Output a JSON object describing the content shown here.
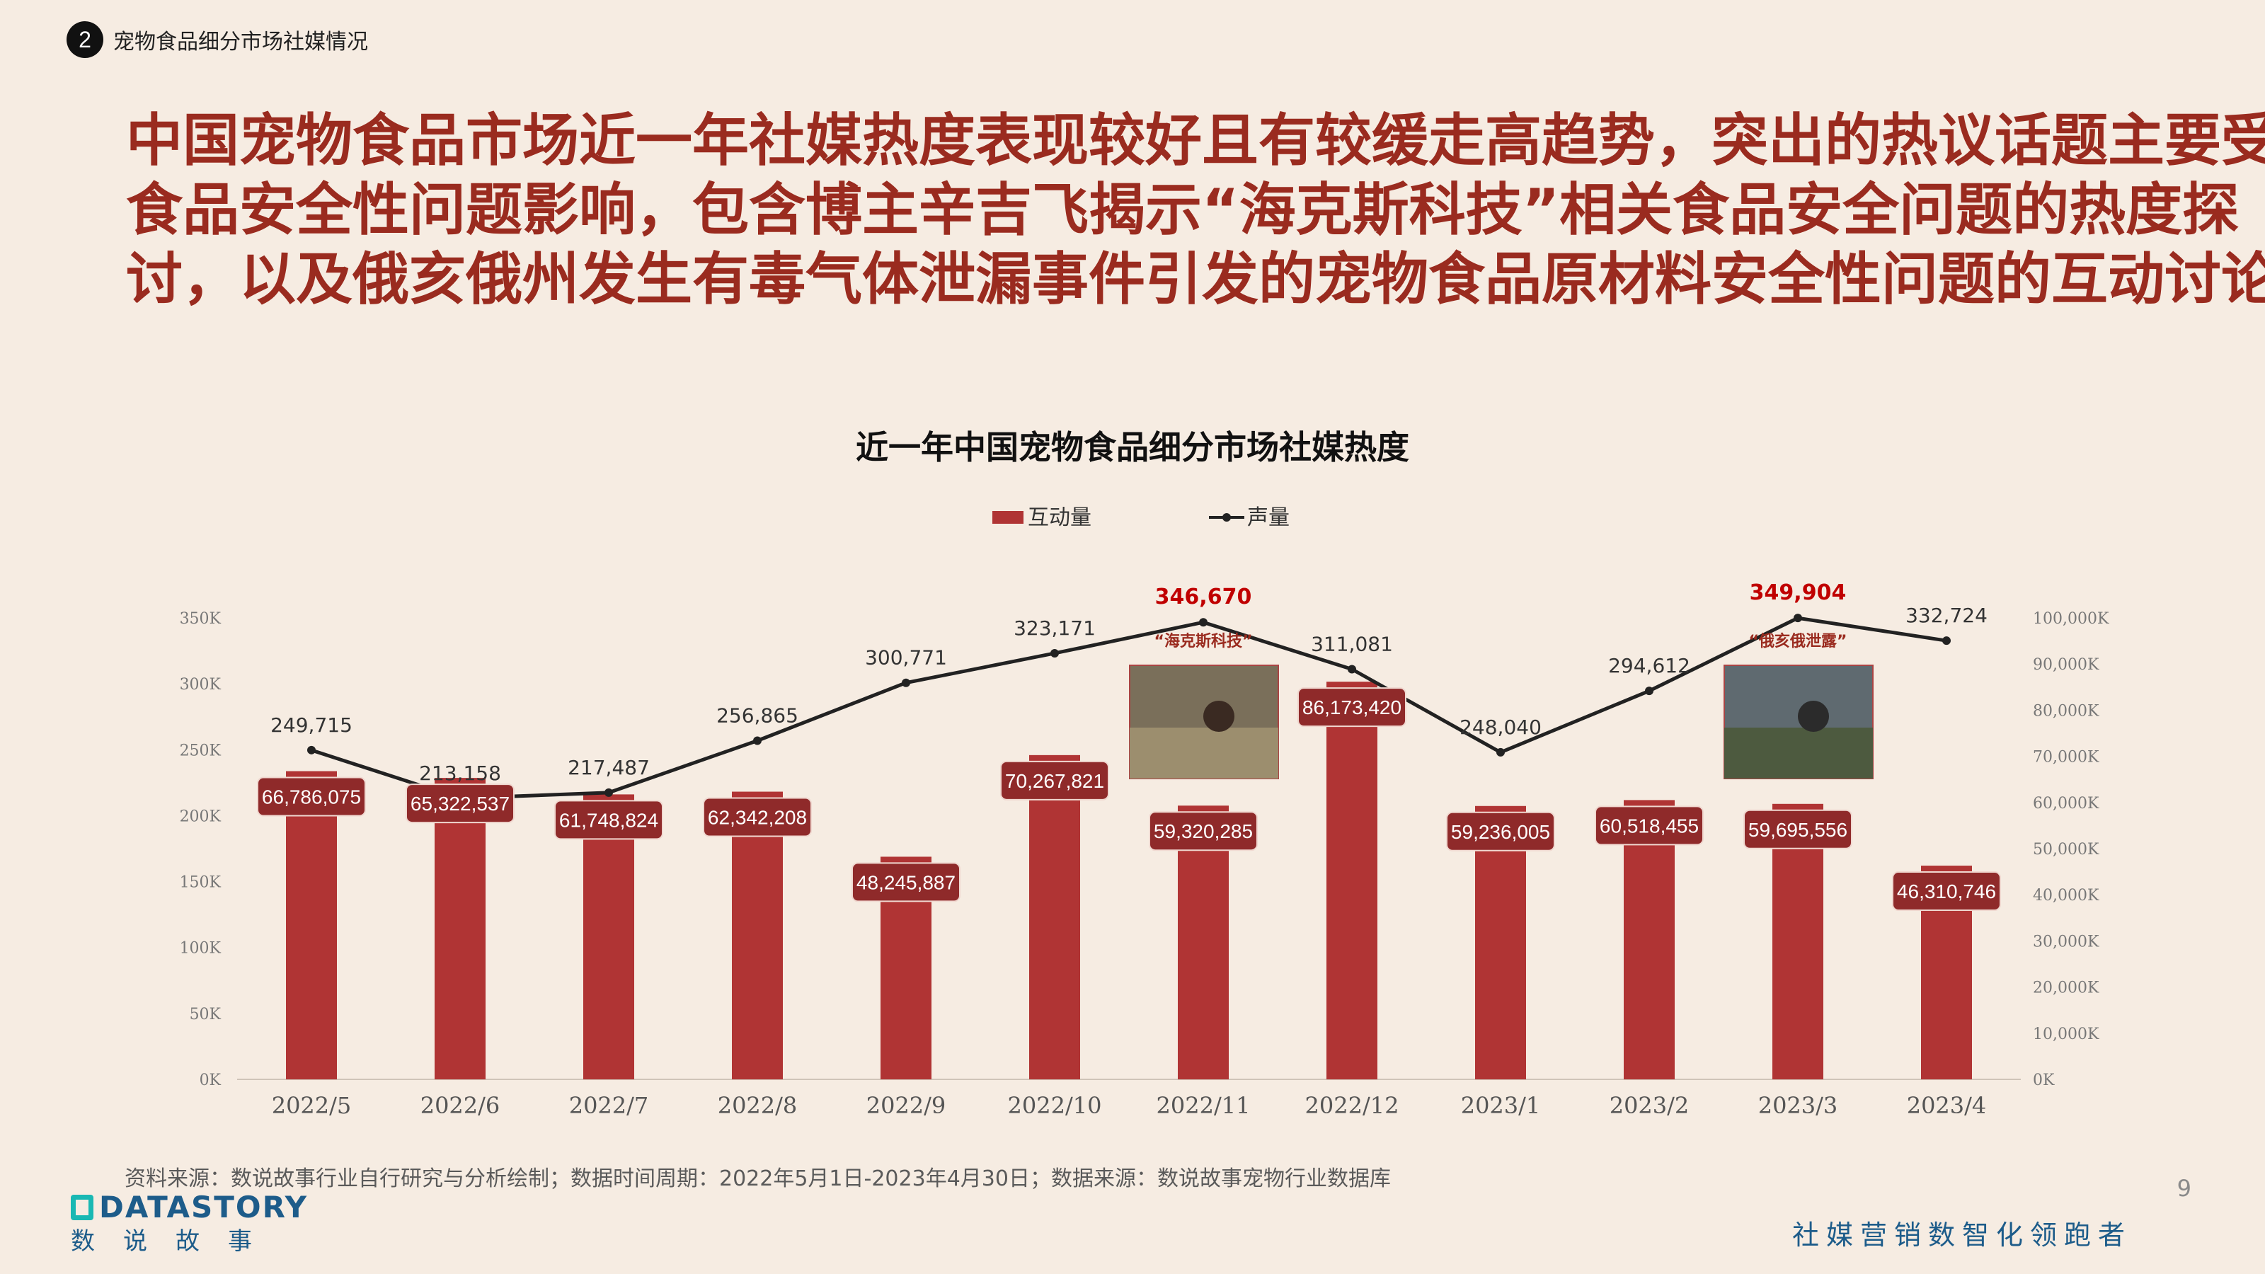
{
  "section": {
    "number": "2",
    "label": "宠物食品细分市场社媒情况"
  },
  "headline": [
    "中国宠物食品市场近一年社媒热度表现较好且有较缓走高趋势，突出的热议话题主要受",
    "食品安全性问题影响，包含博主辛吉飞揭示“海克斯科技”相关食品安全问题的热度探",
    "讨，以及俄亥俄州发生有毒气体泄漏事件引发的宠物食品原材料安全性问题的互动讨论"
  ],
  "chart_data": {
    "type": "bar",
    "title": "近一年中国宠物食品细分市场社媒热度",
    "categories": [
      "2022/5",
      "2022/6",
      "2022/7",
      "2022/8",
      "2022/9",
      "2022/10",
      "2022/11",
      "2022/12",
      "2023/1",
      "2023/2",
      "2023/3",
      "2023/4"
    ],
    "series": [
      {
        "name": "互动量",
        "type": "bar",
        "axis": "right",
        "color": "#b03434",
        "values": [
          66786075,
          65322537,
          61748824,
          62342208,
          48245887,
          70267821,
          59320285,
          86173420,
          59236005,
          60518455,
          59695556,
          46310746
        ],
        "labels": [
          "66,786,075",
          "65,322,537",
          "61,748,824",
          "62,342,208",
          "48,245,887",
          "70,267,821",
          "59,320,285",
          "86,173,420",
          "59,236,005",
          "60,518,455",
          "59,695,556",
          "46,310,746"
        ]
      },
      {
        "name": "声量",
        "type": "line",
        "axis": "left",
        "color": "#222222",
        "values": [
          249715,
          213158,
          217487,
          256865,
          300771,
          323171,
          346670,
          311081,
          248040,
          294612,
          349904,
          332724
        ],
        "labels": [
          "249,715",
          "213,158",
          "217,487",
          "256,865",
          "300,771",
          "323,171",
          "346,670",
          "311,081",
          "248,040",
          "294,612",
          "349,904",
          "332,724"
        ]
      }
    ],
    "y_left": {
      "ylim": [
        0,
        350000
      ],
      "ticks": [
        "0K",
        "50K",
        "100K",
        "150K",
        "200K",
        "250K",
        "300K",
        "350K"
      ]
    },
    "y_right": {
      "ylim": [
        0,
        100000000
      ],
      "ticks": [
        "0K",
        "10,000K",
        "20,000K",
        "30,000K",
        "40,000K",
        "50,000K",
        "60,000K",
        "70,000K",
        "80,000K",
        "90,000K",
        "100,000K"
      ]
    },
    "legend_placement": "top-center",
    "highlight_color": "#c00000",
    "highlights": [
      6,
      10
    ],
    "annotations": [
      {
        "index": 6,
        "text": "“海克斯科技”"
      },
      {
        "index": 10,
        "text": "“俄亥俄泄露”"
      }
    ]
  },
  "source": "资料来源：数说故事行业自行研究与分析绘制；数据时间周期：2022年5月1日-2023年4月30日；数据来源：数说故事宠物行业数据库",
  "page_number": "9",
  "logo": {
    "en": "DATASTORY",
    "cn": "数说故事"
  },
  "slogan": "社媒营销数智化领跑者"
}
